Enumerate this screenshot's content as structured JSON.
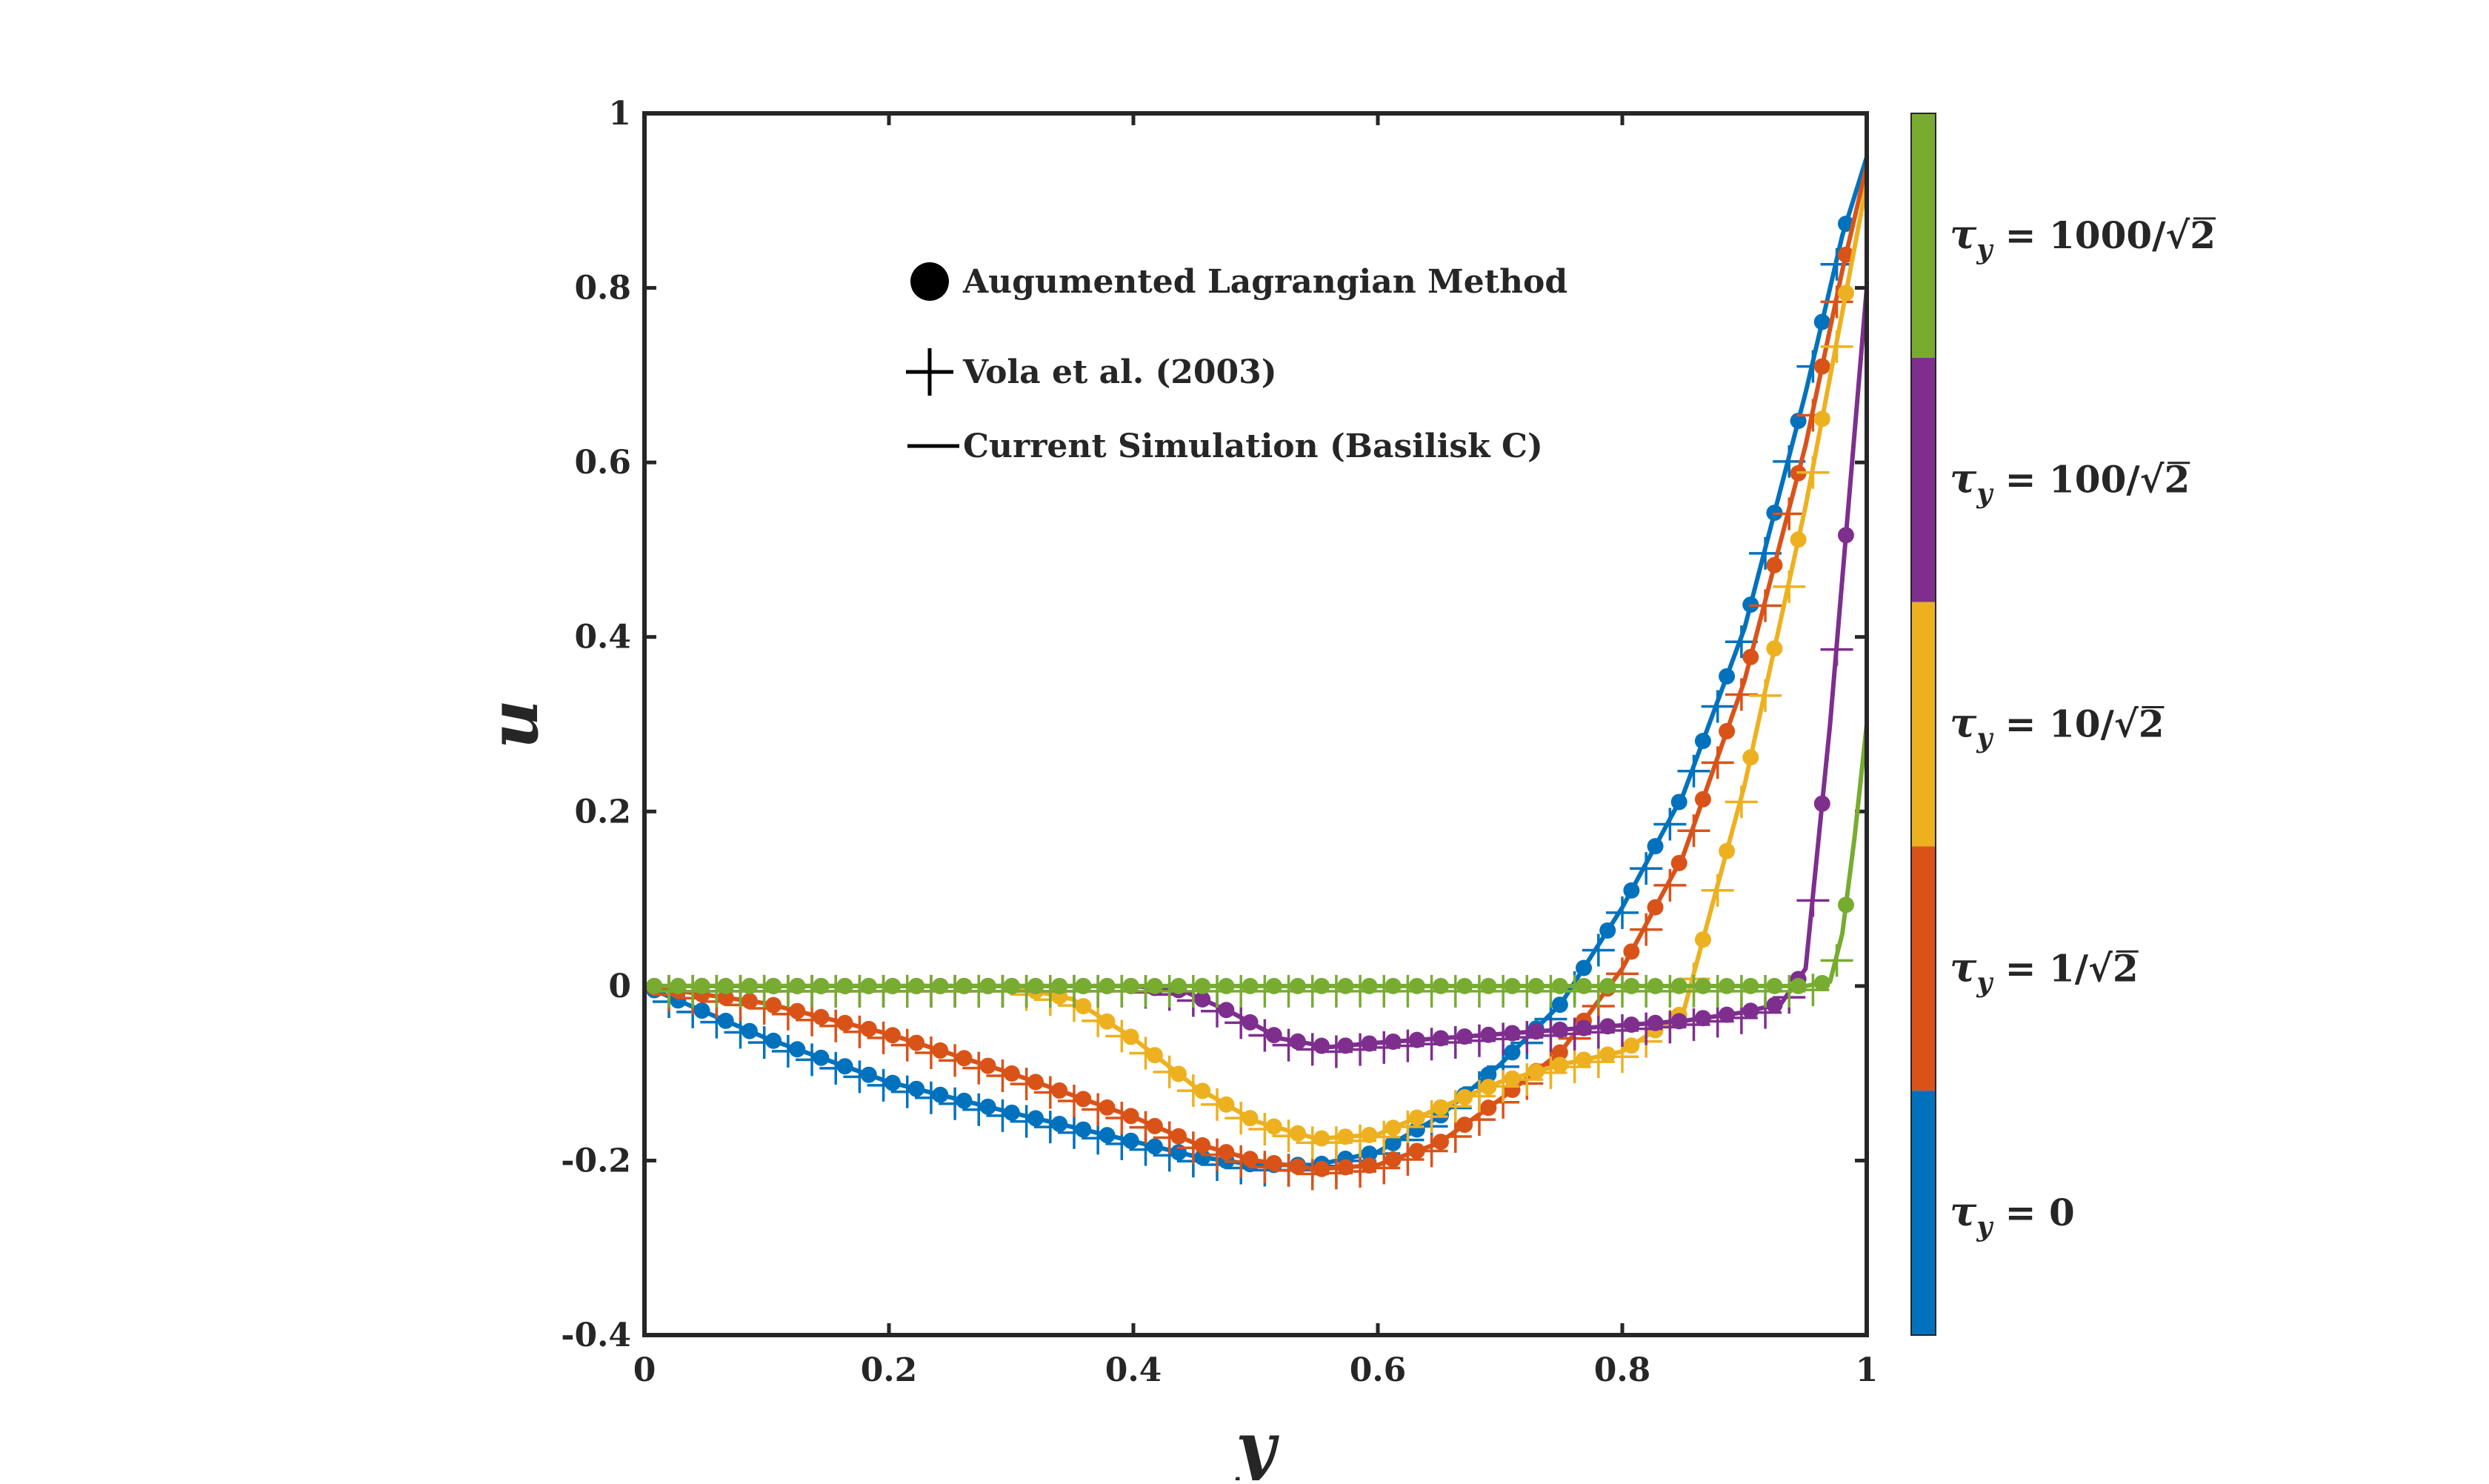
{
  "chart_data": {
    "type": "line",
    "xlabel": "y",
    "ylabel": "u",
    "xlim": [
      0,
      1
    ],
    "ylim": [
      -0.4,
      1
    ],
    "x_ticks": [
      "0",
      "0.2",
      "0.4",
      "0.6",
      "0.8",
      "1"
    ],
    "y_ticks": [
      "-0.4",
      "-0.2",
      "0",
      "0.2",
      "0.4",
      "0.6",
      "0.8",
      "1"
    ],
    "grid": false,
    "legend": {
      "placement": "top-left inside",
      "entries": [
        {
          "marker": "dot",
          "label": "Augumented Lagrangian Method"
        },
        {
          "marker": "plus",
          "label": "Vola et al. (2003)"
        },
        {
          "marker": "line",
          "label": "Current Simulation (Basilisk C)"
        }
      ]
    },
    "colorbar": {
      "placement": "right",
      "labels": [
        {
          "tau": "τ",
          "sub": "y",
          "eq": " = ",
          "num": "1000/",
          "root": "√2",
          "color": "#77ac30"
        },
        {
          "tau": "τ",
          "sub": "y",
          "eq": " = ",
          "num": "100/",
          "root": "√2",
          "color": "#7e2f8e"
        },
        {
          "tau": "τ",
          "sub": "y",
          "eq": " = ",
          "num": "10/",
          "root": "√2",
          "color": "#edb120"
        },
        {
          "tau": "τ",
          "sub": "y",
          "eq": " = ",
          "num": "1/",
          "root": "√2",
          "color": "#d95319"
        },
        {
          "tau": "τ",
          "sub": "y",
          "eq": " = ",
          "num": "0",
          "root": "",
          "color": "#0072bd"
        }
      ]
    },
    "series": [
      {
        "color": "#0072bd",
        "x": [
          0,
          0.1,
          0.2,
          0.3,
          0.4,
          0.45,
          0.5,
          0.55,
          0.6,
          0.65,
          0.7,
          0.75,
          0.8,
          0.85,
          0.9,
          0.95,
          0.98,
          1.0
        ],
        "y": [
          0,
          -0.06,
          -0.11,
          -0.145,
          -0.178,
          -0.195,
          -0.205,
          -0.205,
          -0.19,
          -0.15,
          -0.09,
          -0.02,
          0.09,
          0.22,
          0.41,
          0.68,
          0.86,
          0.95
        ]
      },
      {
        "color": "#d95319",
        "x": [
          0,
          0.1,
          0.2,
          0.3,
          0.4,
          0.45,
          0.5,
          0.55,
          0.6,
          0.65,
          0.7,
          0.75,
          0.8,
          0.85,
          0.9,
          0.95,
          0.98,
          1.0
        ],
        "y": [
          0,
          -0.02,
          -0.055,
          -0.1,
          -0.15,
          -0.18,
          -0.2,
          -0.21,
          -0.205,
          -0.18,
          -0.13,
          -0.075,
          0.02,
          0.15,
          0.35,
          0.62,
          0.82,
          0.94
        ]
      },
      {
        "color": "#edb120",
        "x": [
          0,
          0.1,
          0.2,
          0.3,
          0.35,
          0.4,
          0.45,
          0.5,
          0.55,
          0.6,
          0.65,
          0.7,
          0.75,
          0.8,
          0.85,
          0.9,
          0.95,
          1.0
        ],
        "y": [
          0,
          0,
          0,
          0,
          -0.015,
          -0.06,
          -0.115,
          -0.155,
          -0.175,
          -0.17,
          -0.14,
          -0.11,
          -0.09,
          -0.075,
          -0.03,
          0.23,
          0.55,
          0.92
        ]
      },
      {
        "color": "#7e2f8e",
        "x": [
          0,
          0.1,
          0.2,
          0.3,
          0.4,
          0.44,
          0.48,
          0.52,
          0.56,
          0.6,
          0.65,
          0.7,
          0.75,
          0.8,
          0.85,
          0.9,
          0.93,
          0.95,
          0.97,
          1.0
        ],
        "y": [
          0,
          0,
          0,
          0,
          0,
          -0.005,
          -0.03,
          -0.06,
          -0.07,
          -0.065,
          -0.06,
          -0.055,
          -0.05,
          -0.045,
          -0.04,
          -0.03,
          -0.02,
          0.02,
          0.3,
          0.8
        ]
      },
      {
        "color": "#77ac30",
        "x": [
          0,
          0.1,
          0.2,
          0.3,
          0.4,
          0.5,
          0.6,
          0.7,
          0.8,
          0.9,
          0.95,
          0.97,
          0.98,
          0.99,
          1.0
        ],
        "y": [
          0,
          0,
          0,
          0,
          0,
          0,
          0,
          0,
          0,
          0,
          0,
          0.005,
          0.06,
          0.17,
          0.3
        ]
      }
    ]
  }
}
